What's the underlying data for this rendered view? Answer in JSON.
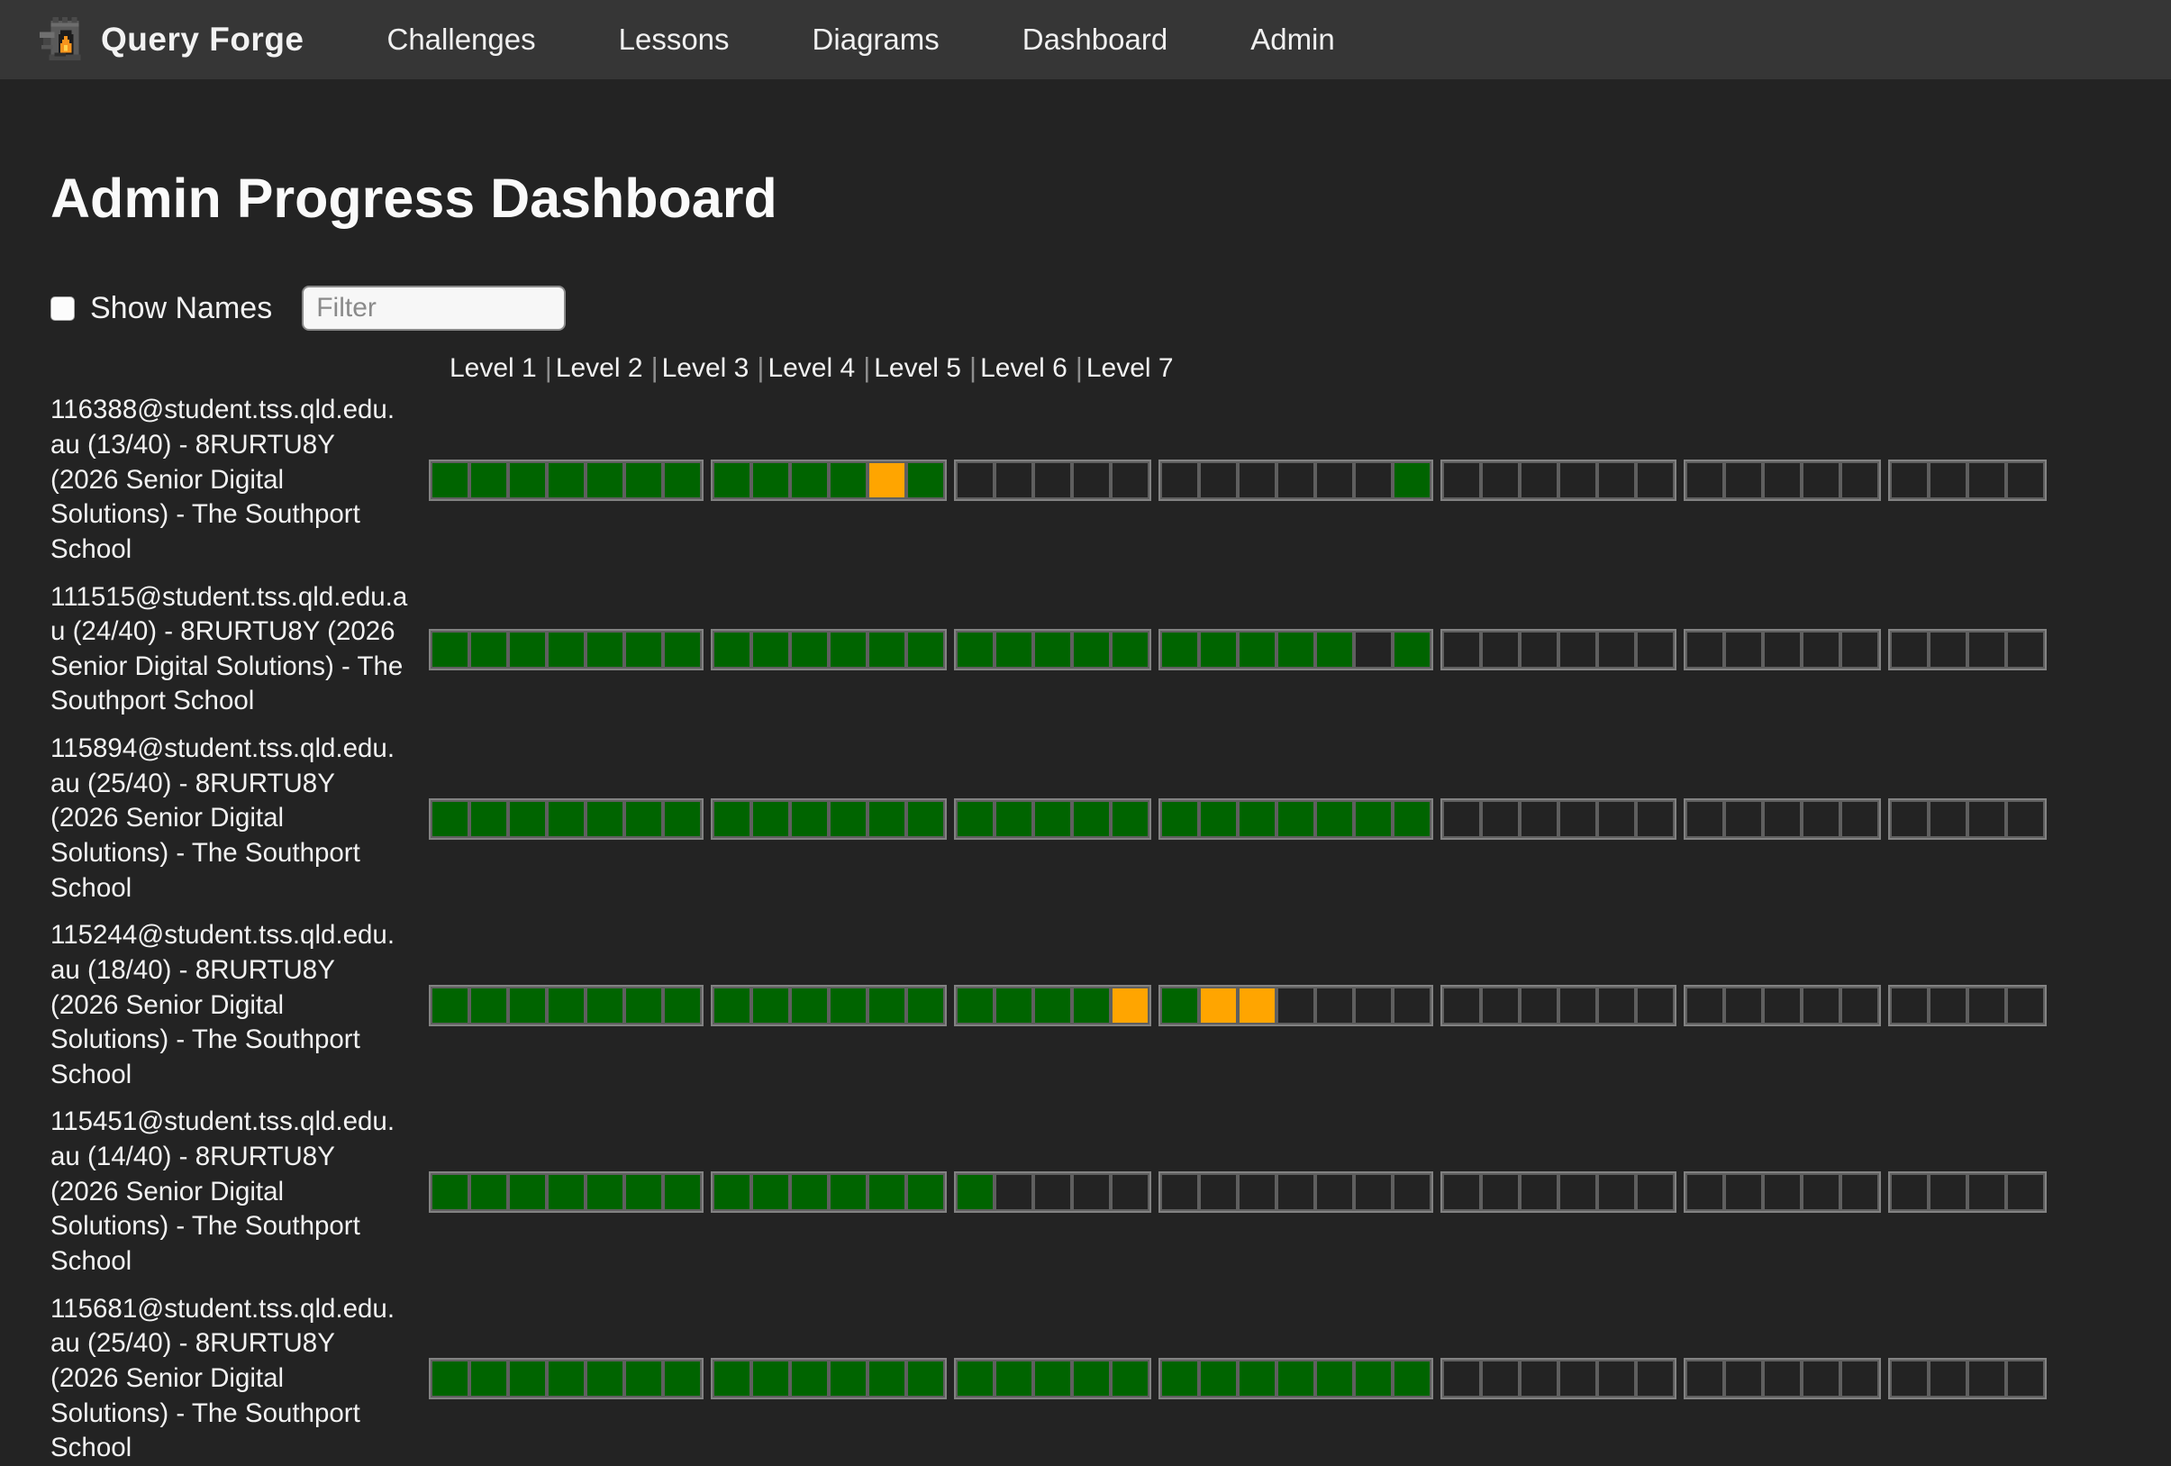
{
  "nav": {
    "brand": "Query Forge",
    "items": [
      "Challenges",
      "Lessons",
      "Diagrams",
      "Dashboard",
      "Admin"
    ]
  },
  "page": {
    "title": "Admin Progress Dashboard"
  },
  "controls": {
    "show_names_label": "Show Names",
    "show_names_checked": false,
    "filter_placeholder": "Filter",
    "filter_value": ""
  },
  "legend": {
    "levels": [
      "Level 1",
      "Level 2",
      "Level 3",
      "Level 4",
      "Level 5",
      "Level 6",
      "Level 7"
    ],
    "level_sizes": [
      7,
      6,
      5,
      7,
      6,
      5,
      4
    ],
    "total_challenges": 40
  },
  "cell_states": {
    "C": "complete",
    "P": "partial",
    "E": "empty"
  },
  "colors": {
    "complete": "#006400",
    "partial": "#ffa500",
    "cell_border": "#5f5f5f",
    "group_border": "#828282",
    "nav_bg": "#363636",
    "page_bg": "#232323"
  },
  "students": [
    {
      "label": "116388@student.tss.qld.edu.au (13/40) - 8RURTU8Y (2026 Senior Digital Solutions) - The Southport School",
      "progress": "13/40",
      "levels": [
        "CCCCCCC",
        "CCCCPC",
        "EEEEE",
        "EEEEEEC",
        "EEEEEE",
        "EEEEE",
        "EEEE"
      ]
    },
    {
      "label": "111515@student.tss.qld.edu.au (24/40) - 8RURTU8Y (2026 Senior Digital Solutions) - The Southport School",
      "progress": "24/40",
      "levels": [
        "CCCCCCC",
        "CCCCCC",
        "CCCCC",
        "CCCCCEC",
        "EEEEEE",
        "EEEEE",
        "EEEE"
      ]
    },
    {
      "label": "115894@student.tss.qld.edu.au (25/40) - 8RURTU8Y (2026 Senior Digital Solutions) - The Southport School",
      "progress": "25/40",
      "levels": [
        "CCCCCCC",
        "CCCCCC",
        "CCCCC",
        "CCCCCCC",
        "EEEEEE",
        "EEEEE",
        "EEEE"
      ]
    },
    {
      "label": "115244@student.tss.qld.edu.au (18/40) - 8RURTU8Y (2026 Senior Digital Solutions) - The Southport School",
      "progress": "18/40",
      "levels": [
        "CCCCCCC",
        "CCCCCC",
        "CCCCP",
        "CPPEEEE",
        "EEEEEE",
        "EEEEE",
        "EEEE"
      ]
    },
    {
      "label": "115451@student.tss.qld.edu.au (14/40) - 8RURTU8Y (2026 Senior Digital Solutions) - The Southport School",
      "progress": "14/40",
      "levels": [
        "CCCCCCC",
        "CCCCCC",
        "CEEEE",
        "EEEEEEE",
        "EEEEEE",
        "EEEEE",
        "EEEE"
      ]
    },
    {
      "label": "115681@student.tss.qld.edu.au (25/40) - 8RURTU8Y (2026 Senior Digital Solutions) - The Southport School",
      "progress": "25/40",
      "levels": [
        "CCCCCCC",
        "CCCCCC",
        "CCCCC",
        "CCCCCCC",
        "EEEEEE",
        "EEEEE",
        "EEEE"
      ]
    }
  ]
}
